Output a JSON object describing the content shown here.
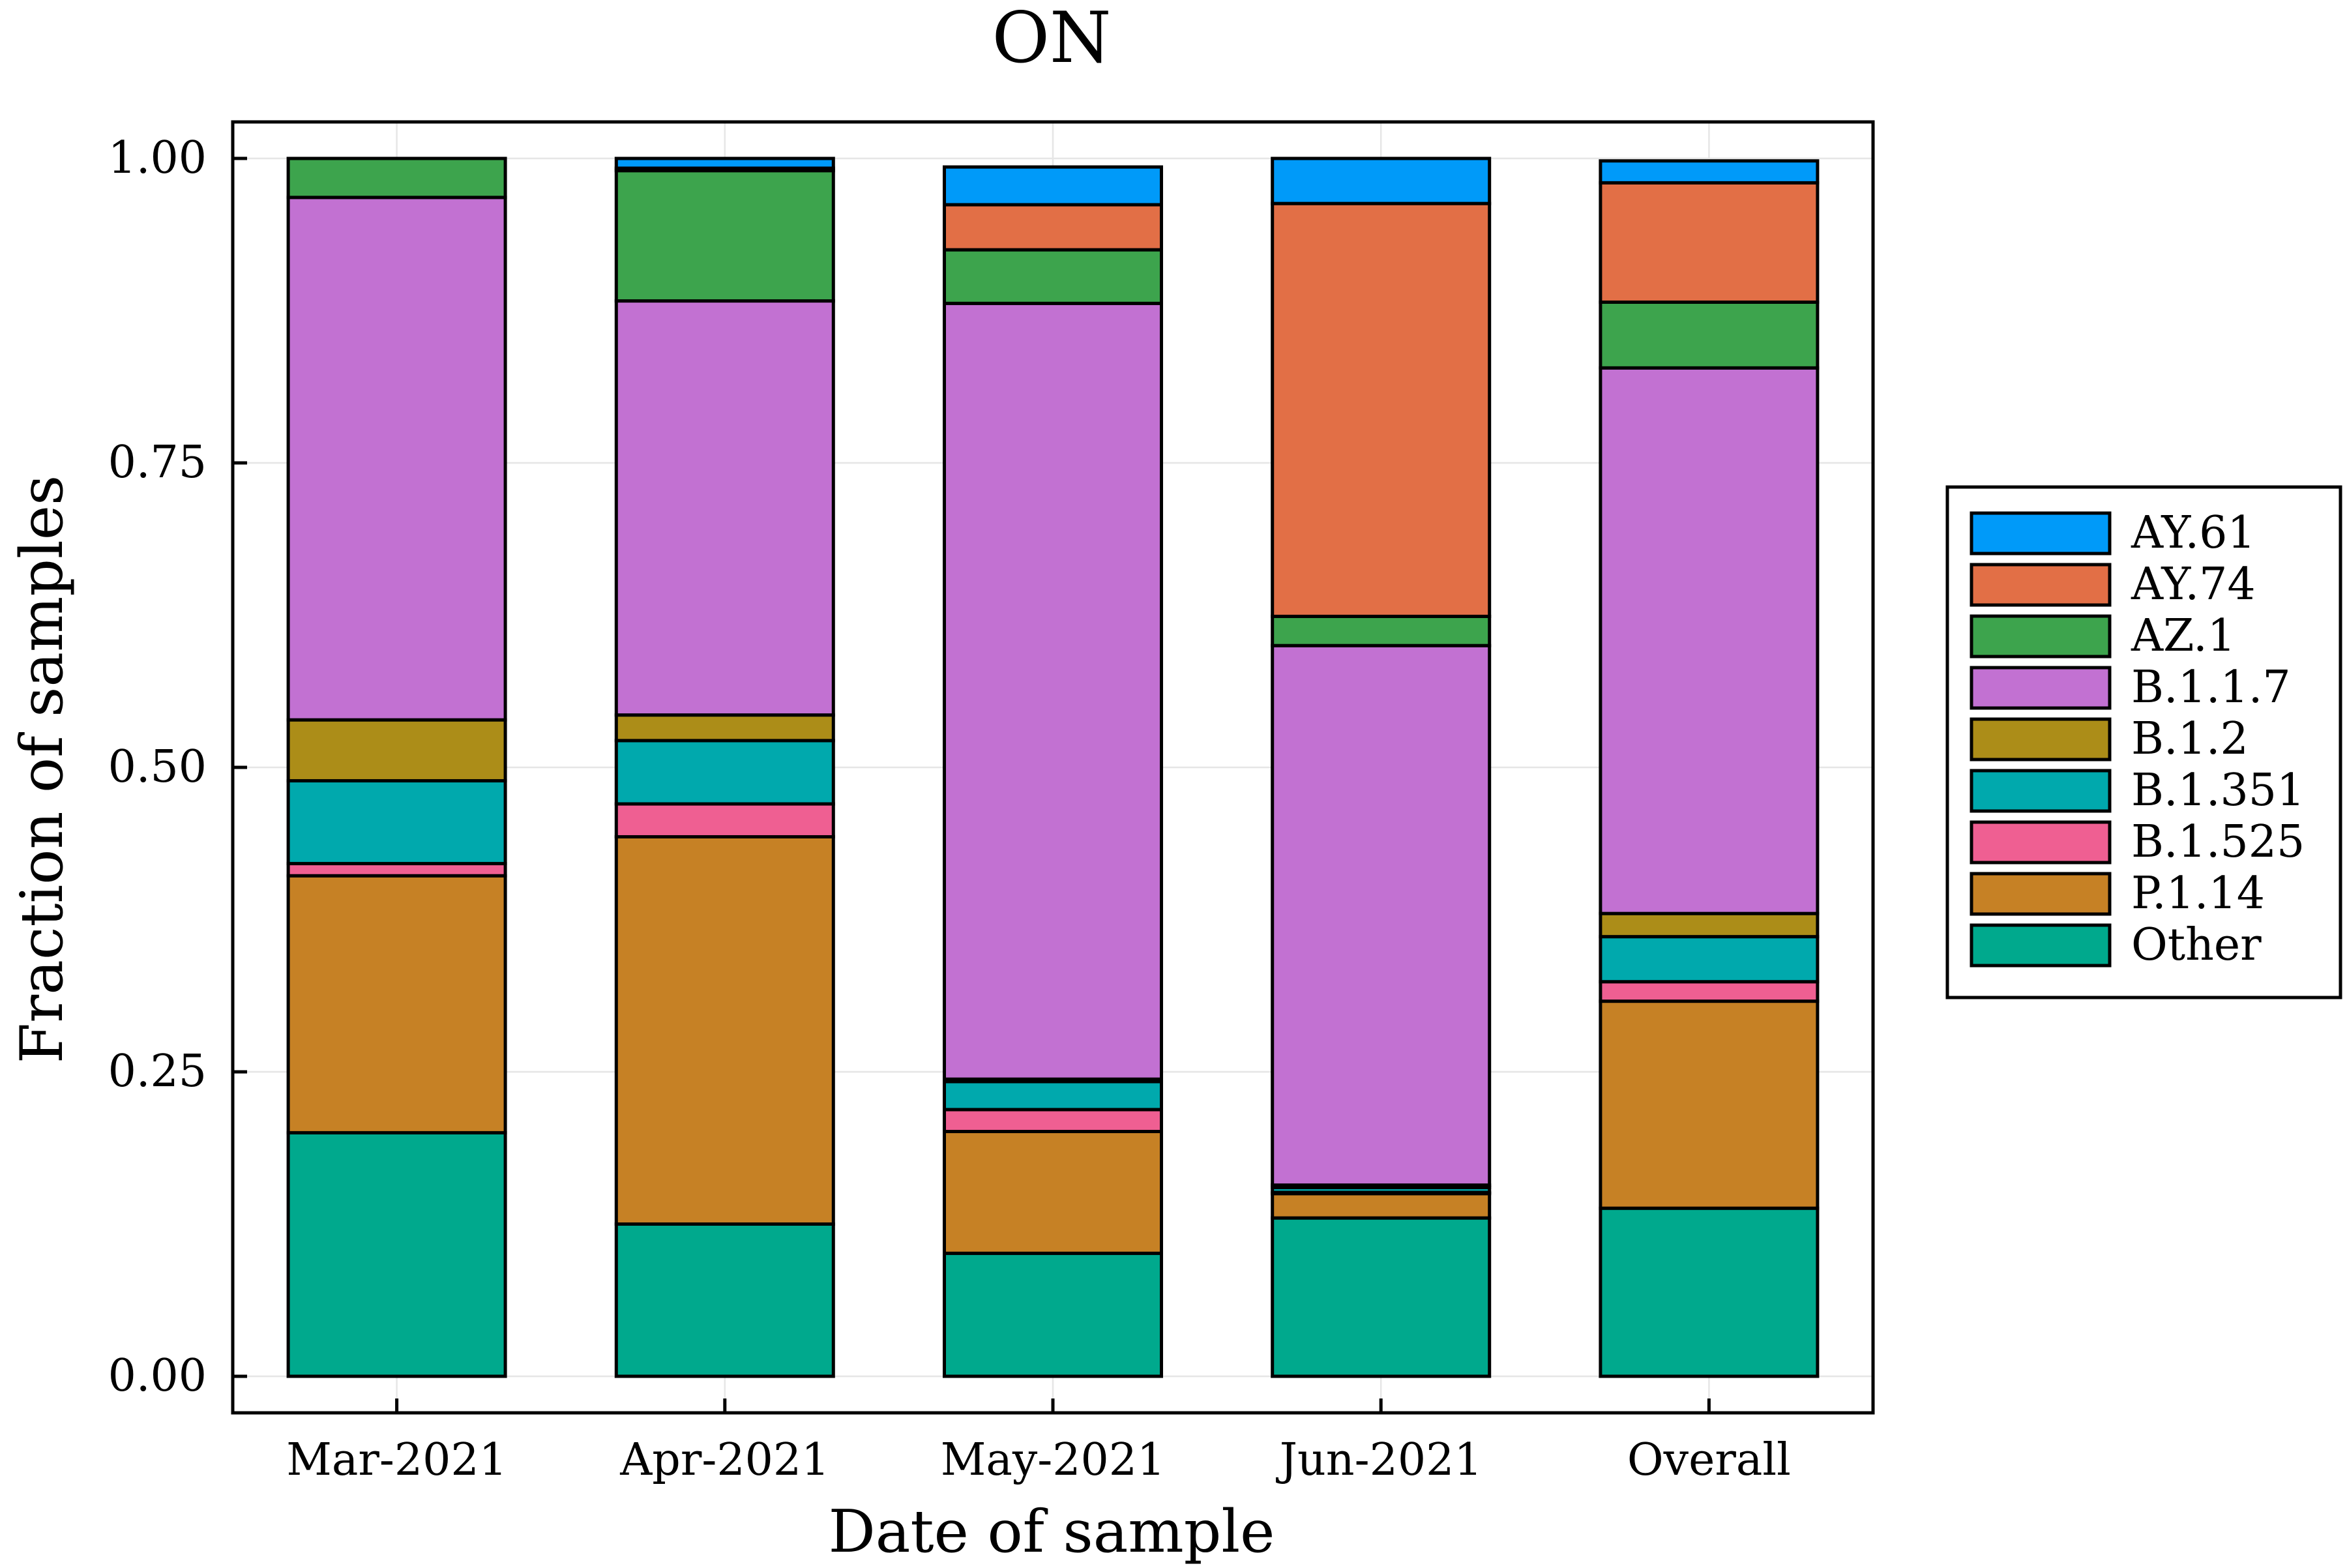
{
  "chart_data": {
    "type": "bar",
    "stacked": true,
    "title": "ON",
    "xlabel": "Date of sample",
    "ylabel": "Fraction of samples",
    "ylim": [
      -0.03,
      1.03
    ],
    "yticks": [
      0.0,
      0.25,
      0.5,
      0.75,
      1.0
    ],
    "ytick_labels": [
      "0.00",
      "0.25",
      "0.50",
      "0.75",
      "1.00"
    ],
    "grid": true,
    "legend_position": "right",
    "categories": [
      "Mar-2021",
      "Apr-2021",
      "May-2021",
      "Jun-2021",
      "Overall"
    ],
    "stack_order": [
      "Other",
      "P.1.14",
      "B.1.525",
      "B.1.351",
      "B.1.2",
      "B.1.1.7",
      "AZ.1",
      "AY.74",
      "AY.61"
    ],
    "series": [
      {
        "name": "AY.61",
        "color": "#009af9",
        "values": [
          0.0,
          0.008,
          0.031,
          0.037,
          0.018
        ]
      },
      {
        "name": "AY.74",
        "color": "#e26f46",
        "values": [
          0.0,
          0.002,
          0.037,
          0.339,
          0.098
        ]
      },
      {
        "name": "AZ.1",
        "color": "#3da44d",
        "values": [
          0.032,
          0.107,
          0.044,
          0.024,
          0.054
        ]
      },
      {
        "name": "B.1.1.7",
        "color": "#c271d2",
        "values": [
          0.429,
          0.34,
          0.637,
          0.443,
          0.448
        ]
      },
      {
        "name": "B.1.2",
        "color": "#ac8d18",
        "values": [
          0.05,
          0.021,
          0.002,
          0.002,
          0.019
        ]
      },
      {
        "name": "B.1.351",
        "color": "#00a9ad",
        "values": [
          0.068,
          0.052,
          0.023,
          0.004,
          0.037
        ]
      },
      {
        "name": "B.1.525",
        "color": "#ef5f92",
        "values": [
          0.01,
          0.027,
          0.018,
          0.001,
          0.016
        ]
      },
      {
        "name": "P.1.14",
        "color": "#c68125",
        "values": [
          0.211,
          0.318,
          0.1,
          0.02,
          0.17
        ]
      },
      {
        "name": "Other",
        "color": "#00a98d",
        "values": [
          0.2,
          0.125,
          0.101,
          0.13,
          0.138
        ]
      }
    ]
  }
}
